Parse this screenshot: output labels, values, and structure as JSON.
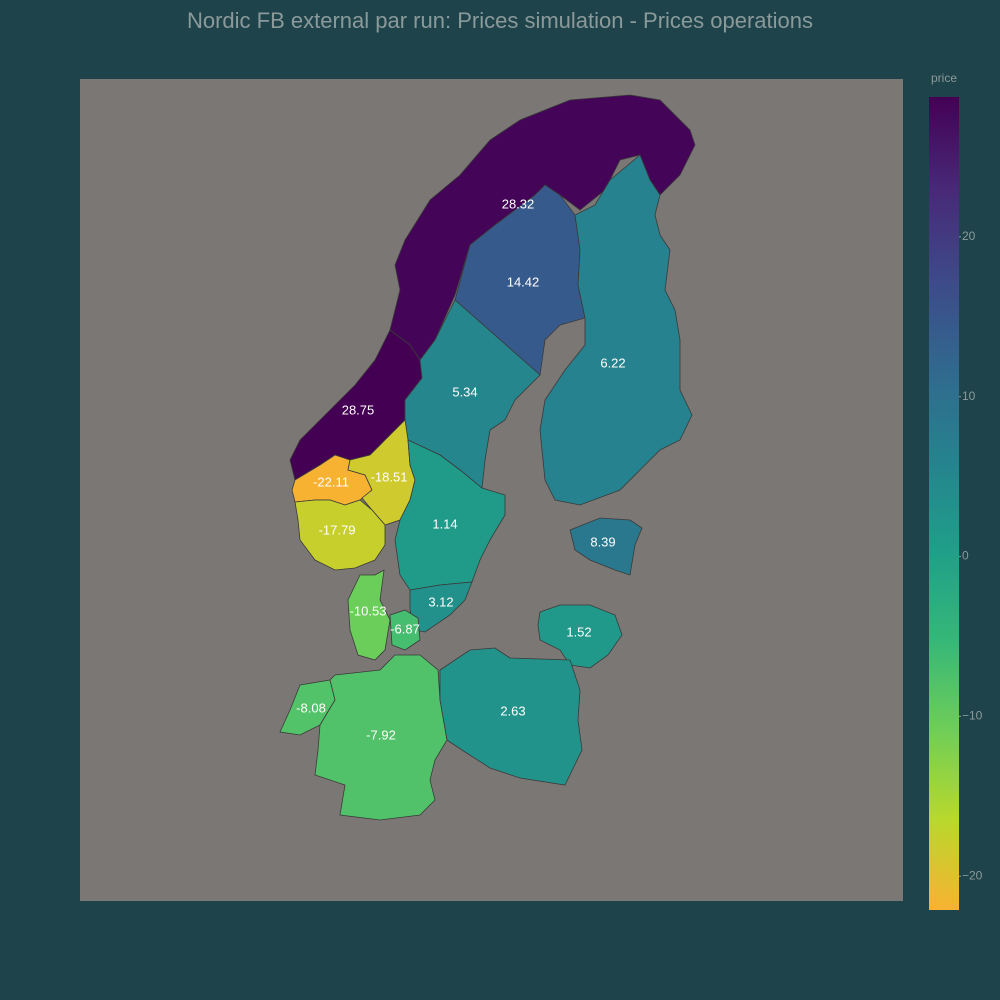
{
  "chart_data": {
    "type": "choropleth",
    "title": "Nordic FB external par run: Prices simulation - Prices operations",
    "colorbar_title": "price",
    "values": [
      28.32,
      28.75,
      14.42,
      6.22,
      5.34,
      -22.11,
      -18.51,
      -17.79,
      1.14,
      8.39,
      3.12,
      -10.53,
      -6.87,
      1.52,
      -8.08,
      -7.92,
      2.63
    ],
    "colorscale": [
      "#f8b231",
      "#b8d82c",
      "#6ece58",
      "#35b779",
      "#1f9e89",
      "#26828e",
      "#31688e",
      "#3e4989",
      "#482878",
      "#440154"
    ],
    "clim": [
      -22.11,
      28.75
    ],
    "colorbar_ticks": [
      {
        "value": -20,
        "label": "−20"
      },
      {
        "value": -10,
        "label": "−10"
      },
      0,
      10,
      20
    ]
  }
}
